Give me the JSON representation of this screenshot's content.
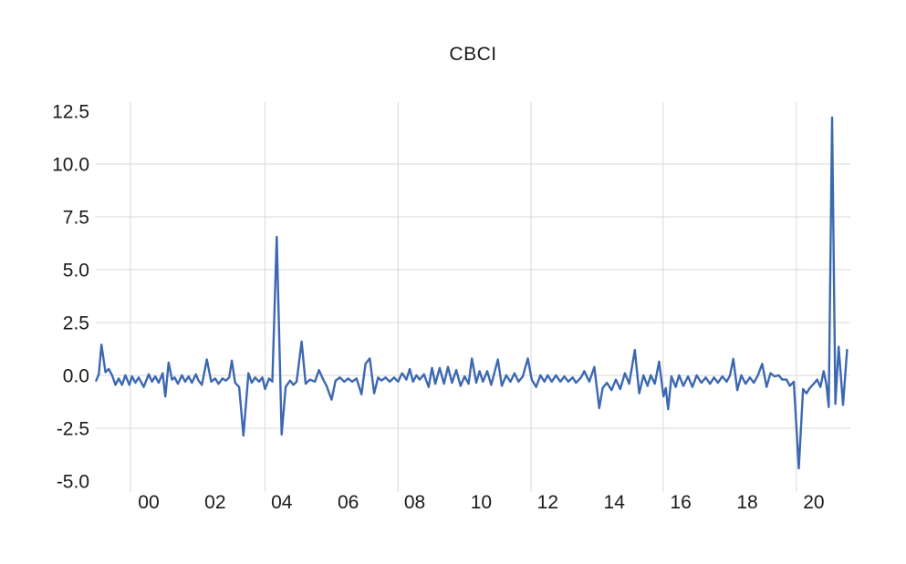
{
  "window": {
    "background": "#ffffff"
  },
  "chart_data": {
    "type": "line",
    "title": "CBCI",
    "xlabel": "",
    "ylabel": "",
    "legend": "none",
    "grid": true,
    "xlim": [
      1998.41,
      2021.1
    ],
    "ylim": [
      -5.52,
      12.93
    ],
    "x_ticks": [
      {
        "label": "00",
        "year": 2000
      },
      {
        "label": "02",
        "year": 2002
      },
      {
        "label": "04",
        "year": 2004
      },
      {
        "label": "06",
        "year": 2006
      },
      {
        "label": "08",
        "year": 2008
      },
      {
        "label": "10",
        "year": 2010
      },
      {
        "label": "12",
        "year": 2012
      },
      {
        "label": "14",
        "year": 2014
      },
      {
        "label": "16",
        "year": 2016
      },
      {
        "label": "18",
        "year": 2018
      },
      {
        "label": "20",
        "year": 2020
      }
    ],
    "y_ticks": [
      {
        "label": "12.5",
        "value": 12.5
      },
      {
        "label": "10.0",
        "value": 10.0
      },
      {
        "label": "7.5",
        "value": 7.5
      },
      {
        "label": "5.0",
        "value": 5.0
      },
      {
        "label": "2.5",
        "value": 2.5
      },
      {
        "label": "0.0",
        "value": 0.0
      },
      {
        "label": "-2.5",
        "value": -2.5
      },
      {
        "label": "-5.0",
        "value": -5.0
      }
    ],
    "x_gridline_years": [
      1999.45,
      2003.5,
      2007.5,
      2011.5,
      2015.47,
      2019.48
    ],
    "y_gridline_values": [
      10.0,
      7.5,
      5.0,
      2.5,
      0.0,
      -2.5
    ],
    "colors": {
      "line": "#3c68b1",
      "grid": "#d9d9d9",
      "text": "#1a1a1a",
      "background": "#ffffff"
    },
    "series": [
      {
        "name": "CBCI",
        "points": [
          [
            1998.42,
            -0.25
          ],
          [
            1998.5,
            0.05
          ],
          [
            1998.58,
            1.45
          ],
          [
            1998.7,
            0.15
          ],
          [
            1998.8,
            0.3
          ],
          [
            1998.9,
            0.0
          ],
          [
            1999.0,
            -0.45
          ],
          [
            1999.1,
            -0.15
          ],
          [
            1999.2,
            -0.45
          ],
          [
            1999.3,
            0.0
          ],
          [
            1999.42,
            -0.45
          ],
          [
            1999.5,
            -0.05
          ],
          [
            1999.6,
            -0.35
          ],
          [
            1999.7,
            -0.1
          ],
          [
            1999.85,
            -0.55
          ],
          [
            2000.0,
            0.05
          ],
          [
            2000.1,
            -0.3
          ],
          [
            2000.2,
            -0.05
          ],
          [
            2000.3,
            -0.35
          ],
          [
            2000.42,
            0.1
          ],
          [
            2000.5,
            -1.0
          ],
          [
            2000.6,
            0.6
          ],
          [
            2000.7,
            -0.2
          ],
          [
            2000.78,
            -0.1
          ],
          [
            2000.88,
            -0.4
          ],
          [
            2001.0,
            0.0
          ],
          [
            2001.1,
            -0.3
          ],
          [
            2001.2,
            -0.05
          ],
          [
            2001.3,
            -0.35
          ],
          [
            2001.42,
            0.05
          ],
          [
            2001.5,
            -0.25
          ],
          [
            2001.6,
            -0.45
          ],
          [
            2001.75,
            0.75
          ],
          [
            2001.88,
            -0.3
          ],
          [
            2002.0,
            -0.15
          ],
          [
            2002.1,
            -0.4
          ],
          [
            2002.22,
            -0.15
          ],
          [
            2002.32,
            -0.25
          ],
          [
            2002.42,
            -0.1
          ],
          [
            2002.5,
            0.7
          ],
          [
            2002.6,
            -0.35
          ],
          [
            2002.72,
            -0.55
          ],
          [
            2002.85,
            -2.85
          ],
          [
            2003.0,
            0.1
          ],
          [
            2003.1,
            -0.35
          ],
          [
            2003.2,
            -0.1
          ],
          [
            2003.32,
            -0.3
          ],
          [
            2003.42,
            -0.1
          ],
          [
            2003.5,
            -0.65
          ],
          [
            2003.62,
            -0.15
          ],
          [
            2003.72,
            -0.3
          ],
          [
            2003.85,
            6.55
          ],
          [
            2004.0,
            -2.8
          ],
          [
            2004.12,
            -0.55
          ],
          [
            2004.25,
            -0.25
          ],
          [
            2004.35,
            -0.45
          ],
          [
            2004.45,
            -0.3
          ],
          [
            2004.6,
            1.6
          ],
          [
            2004.72,
            -0.4
          ],
          [
            2004.85,
            -0.2
          ],
          [
            2005.0,
            -0.3
          ],
          [
            2005.12,
            0.25
          ],
          [
            2005.25,
            -0.2
          ],
          [
            2005.35,
            -0.5
          ],
          [
            2005.5,
            -1.15
          ],
          [
            2005.62,
            -0.25
          ],
          [
            2005.75,
            -0.1
          ],
          [
            2005.88,
            -0.3
          ],
          [
            2006.0,
            -0.15
          ],
          [
            2006.12,
            -0.3
          ],
          [
            2006.25,
            -0.15
          ],
          [
            2006.4,
            -0.9
          ],
          [
            2006.52,
            0.55
          ],
          [
            2006.65,
            0.8
          ],
          [
            2006.78,
            -0.85
          ],
          [
            2006.9,
            -0.1
          ],
          [
            2007.0,
            -0.25
          ],
          [
            2007.12,
            -0.1
          ],
          [
            2007.25,
            -0.3
          ],
          [
            2007.38,
            -0.1
          ],
          [
            2007.5,
            -0.3
          ],
          [
            2007.62,
            0.1
          ],
          [
            2007.75,
            -0.2
          ],
          [
            2007.85,
            0.3
          ],
          [
            2007.95,
            -0.3
          ],
          [
            2008.05,
            0.0
          ],
          [
            2008.15,
            -0.2
          ],
          [
            2008.28,
            0.05
          ],
          [
            2008.42,
            -0.55
          ],
          [
            2008.52,
            0.35
          ],
          [
            2008.62,
            -0.4
          ],
          [
            2008.75,
            0.35
          ],
          [
            2008.88,
            -0.4
          ],
          [
            2009.0,
            0.4
          ],
          [
            2009.12,
            -0.35
          ],
          [
            2009.25,
            0.25
          ],
          [
            2009.38,
            -0.5
          ],
          [
            2009.5,
            -0.05
          ],
          [
            2009.62,
            -0.4
          ],
          [
            2009.72,
            0.8
          ],
          [
            2009.85,
            -0.35
          ],
          [
            2009.95,
            0.2
          ],
          [
            2010.05,
            -0.3
          ],
          [
            2010.18,
            0.2
          ],
          [
            2010.3,
            -0.45
          ],
          [
            2010.5,
            0.75
          ],
          [
            2010.62,
            -0.5
          ],
          [
            2010.75,
            0.0
          ],
          [
            2010.88,
            -0.3
          ],
          [
            2011.0,
            0.1
          ],
          [
            2011.12,
            -0.3
          ],
          [
            2011.25,
            -0.05
          ],
          [
            2011.4,
            0.8
          ],
          [
            2011.52,
            -0.2
          ],
          [
            2011.65,
            -0.55
          ],
          [
            2011.78,
            0.0
          ],
          [
            2011.9,
            -0.3
          ],
          [
            2012.0,
            0.0
          ],
          [
            2012.12,
            -0.3
          ],
          [
            2012.25,
            0.0
          ],
          [
            2012.38,
            -0.3
          ],
          [
            2012.5,
            -0.05
          ],
          [
            2012.62,
            -0.3
          ],
          [
            2012.75,
            -0.1
          ],
          [
            2012.85,
            -0.35
          ],
          [
            2013.0,
            -0.1
          ],
          [
            2013.1,
            0.2
          ],
          [
            2013.25,
            -0.3
          ],
          [
            2013.4,
            0.4
          ],
          [
            2013.55,
            -1.55
          ],
          [
            2013.65,
            -0.6
          ],
          [
            2013.78,
            -0.35
          ],
          [
            2013.92,
            -0.7
          ],
          [
            2014.05,
            -0.2
          ],
          [
            2014.18,
            -0.65
          ],
          [
            2014.32,
            0.1
          ],
          [
            2014.45,
            -0.4
          ],
          [
            2014.62,
            1.2
          ],
          [
            2014.75,
            -0.85
          ],
          [
            2014.88,
            0.0
          ],
          [
            2015.0,
            -0.5
          ],
          [
            2015.1,
            0.0
          ],
          [
            2015.22,
            -0.4
          ],
          [
            2015.35,
            0.65
          ],
          [
            2015.48,
            -1.0
          ],
          [
            2015.55,
            -0.6
          ],
          [
            2015.62,
            -1.6
          ],
          [
            2015.72,
            -0.05
          ],
          [
            2015.85,
            -0.55
          ],
          [
            2015.95,
            0.0
          ],
          [
            2016.08,
            -0.5
          ],
          [
            2016.22,
            -0.05
          ],
          [
            2016.35,
            -0.55
          ],
          [
            2016.48,
            0.0
          ],
          [
            2016.62,
            -0.35
          ],
          [
            2016.75,
            -0.1
          ],
          [
            2016.88,
            -0.4
          ],
          [
            2017.0,
            -0.1
          ],
          [
            2017.12,
            -0.35
          ],
          [
            2017.25,
            -0.05
          ],
          [
            2017.38,
            -0.3
          ],
          [
            2017.48,
            0.0
          ],
          [
            2017.58,
            0.78
          ],
          [
            2017.7,
            -0.7
          ],
          [
            2017.82,
            0.0
          ],
          [
            2017.95,
            -0.4
          ],
          [
            2018.08,
            -0.1
          ],
          [
            2018.2,
            -0.35
          ],
          [
            2018.32,
            0.0
          ],
          [
            2018.45,
            0.55
          ],
          [
            2018.58,
            -0.55
          ],
          [
            2018.7,
            0.1
          ],
          [
            2018.82,
            -0.05
          ],
          [
            2018.95,
            0.0
          ],
          [
            2019.05,
            -0.2
          ],
          [
            2019.18,
            -0.2
          ],
          [
            2019.28,
            -0.5
          ],
          [
            2019.4,
            -0.3
          ],
          [
            2019.55,
            -4.4
          ],
          [
            2019.68,
            -0.65
          ],
          [
            2019.78,
            -0.85
          ],
          [
            2019.88,
            -0.6
          ],
          [
            2020.0,
            -0.4
          ],
          [
            2020.1,
            -0.2
          ],
          [
            2020.2,
            -0.55
          ],
          [
            2020.3,
            0.2
          ],
          [
            2020.38,
            -0.45
          ],
          [
            2020.45,
            -1.5
          ],
          [
            2020.55,
            12.2
          ],
          [
            2020.65,
            -1.35
          ],
          [
            2020.75,
            1.35
          ],
          [
            2020.88,
            -1.4
          ],
          [
            2021.0,
            1.2
          ]
        ]
      }
    ]
  }
}
